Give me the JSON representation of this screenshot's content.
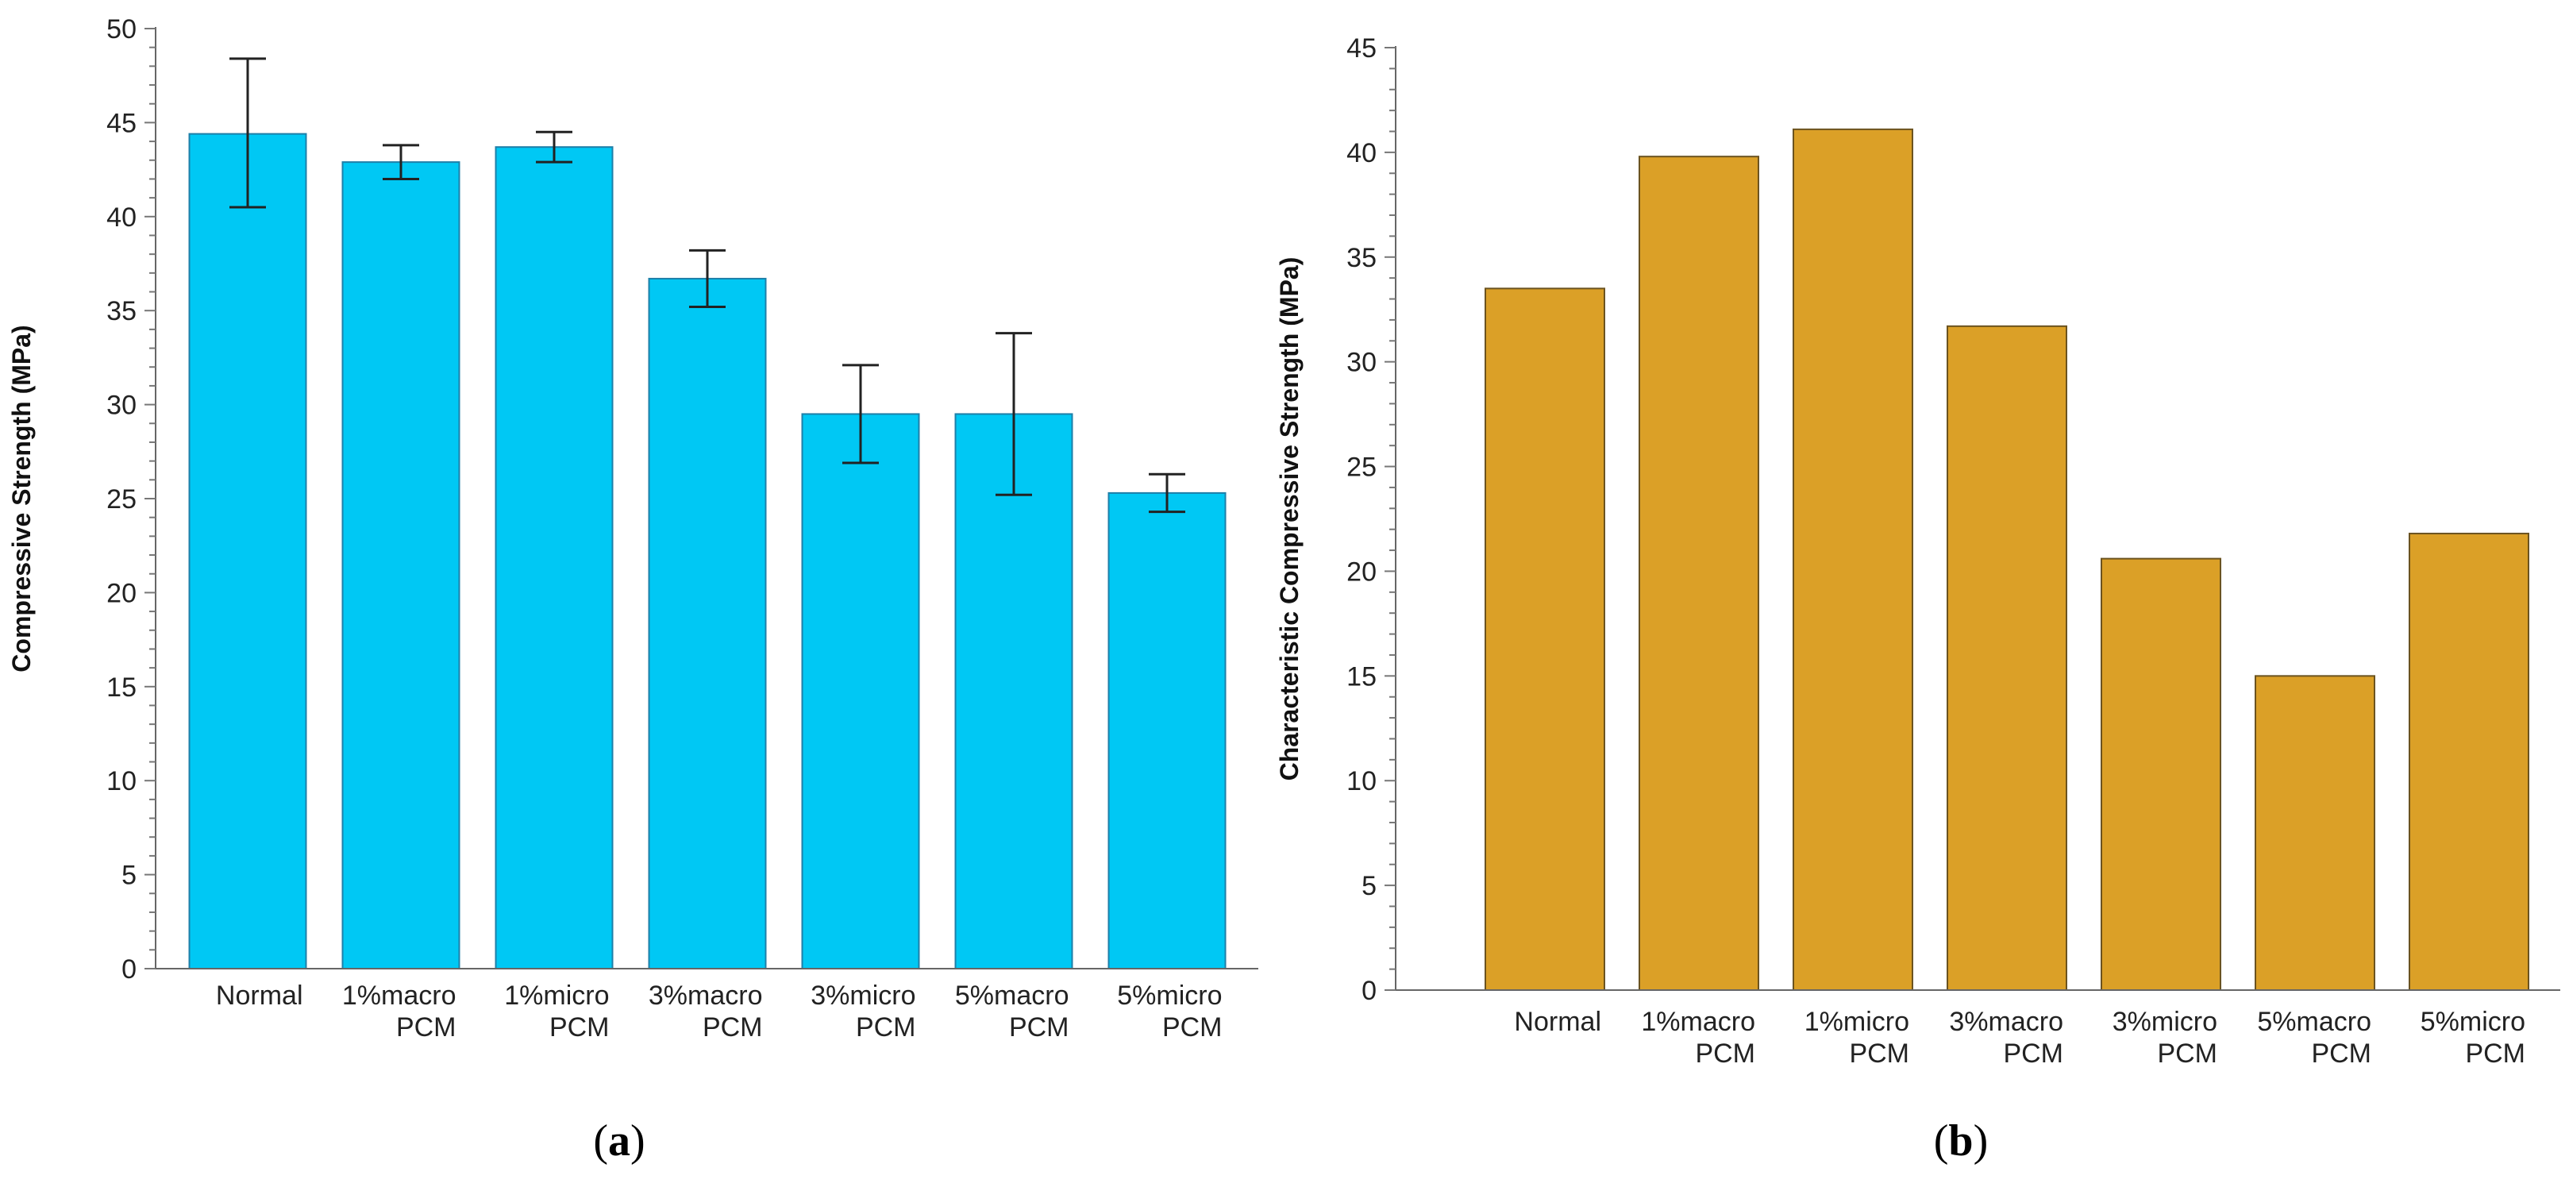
{
  "chart_data": [
    {
      "id": "a",
      "type": "bar",
      "panel_label": "a",
      "categories": [
        [
          "Normal"
        ],
        [
          "1%macro",
          "PCM"
        ],
        [
          "1%micro",
          "PCM"
        ],
        [
          "3%macro",
          "PCM"
        ],
        [
          "3%micro",
          "PCM"
        ],
        [
          "5%macro",
          "PCM"
        ],
        [
          "5%micro",
          "PCM"
        ]
      ],
      "values": [
        44.4,
        42.9,
        43.7,
        36.7,
        29.5,
        29.5,
        25.3
      ],
      "error_low": [
        40.5,
        42.0,
        42.9,
        35.2,
        26.9,
        25.2,
        24.3
      ],
      "error_high": [
        48.4,
        43.8,
        44.5,
        38.2,
        32.1,
        33.8,
        26.3
      ],
      "ylabel": "Compressive Strength (MPa)",
      "xlabel": "",
      "ylim": [
        0,
        50
      ],
      "yticks": [
        0,
        5,
        10,
        15,
        20,
        25,
        30,
        35,
        40,
        45,
        50
      ],
      "bar_color": "#00C8F4",
      "bar_edge": "#1E7FA8"
    },
    {
      "id": "b",
      "type": "bar",
      "panel_label": "b",
      "categories": [
        [
          "Normal"
        ],
        [
          "1%macro",
          "PCM"
        ],
        [
          "1%micro",
          "PCM"
        ],
        [
          "3%macro",
          "PCM"
        ],
        [
          "3%micro",
          "PCM"
        ],
        [
          "5%macro",
          "PCM"
        ],
        [
          "5%micro",
          "PCM"
        ]
      ],
      "values": [
        33.5,
        39.8,
        41.1,
        31.7,
        20.6,
        15.0,
        21.8
      ],
      "ylabel": "Characteristic Compressive Strength (MPa)",
      "xlabel": "",
      "ylim": [
        0,
        45
      ],
      "yticks": [
        0,
        5,
        10,
        15,
        20,
        25,
        30,
        35,
        40,
        45
      ],
      "bar_color": "#DBA027",
      "bar_edge": "#6B5320"
    }
  ]
}
